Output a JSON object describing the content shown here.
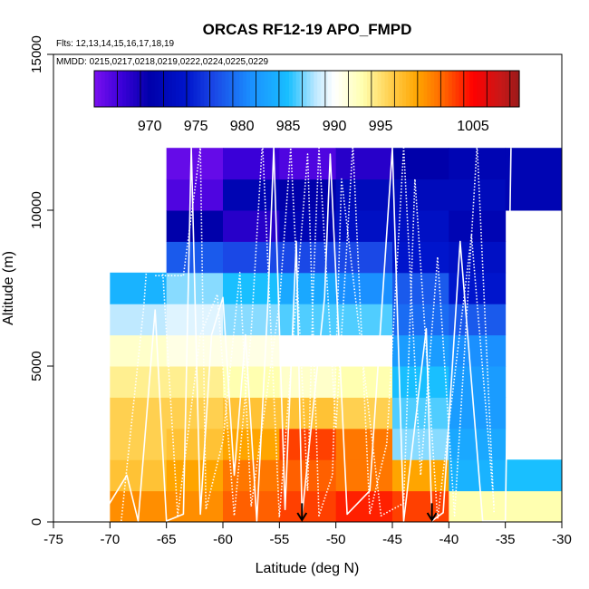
{
  "chart_data": {
    "type": "heatmap",
    "title": "ORCAS RF12-19 APO_FMPD",
    "subtitle_flights": "Flts: 12,13,14,15,16,17,18,19",
    "subtitle_dates": "MMDD: 0215,0217,0218,0219,0222,0224,0225,0229",
    "xlabel": "Latitude (deg N)",
    "ylabel": "Altitude (m)",
    "xlim": [
      -75,
      -30
    ],
    "ylim": [
      0,
      15000
    ],
    "x_ticks": [
      -75,
      -70,
      -65,
      -60,
      -55,
      -50,
      -45,
      -40,
      -35,
      -30
    ],
    "y_ticks": [
      0,
      5000,
      10000,
      15000
    ],
    "grid": false,
    "colorbar": {
      "range": [
        964,
        1010
      ],
      "placement": "top-inside",
      "tick_values": [
        970,
        975,
        980,
        985,
        990,
        995,
        1005
      ],
      "stops": [
        {
          "v": 964,
          "c": "#7a10f0"
        },
        {
          "v": 967,
          "c": "#3a00d8"
        },
        {
          "v": 970,
          "c": "#0000aa"
        },
        {
          "v": 974,
          "c": "#0015cc"
        },
        {
          "v": 977,
          "c": "#1a48e6"
        },
        {
          "v": 981,
          "c": "#1a90ff"
        },
        {
          "v": 985,
          "c": "#19bfff"
        },
        {
          "v": 988,
          "c": "#bfe9ff"
        },
        {
          "v": 990,
          "c": "#ffffff"
        },
        {
          "v": 993,
          "c": "#ffffb0"
        },
        {
          "v": 996,
          "c": "#ffd050"
        },
        {
          "v": 999,
          "c": "#ffa500"
        },
        {
          "v": 1002,
          "c": "#ff6000"
        },
        {
          "v": 1005,
          "c": "#ff0000"
        },
        {
          "v": 1008,
          "c": "#c81818"
        },
        {
          "v": 1010,
          "c": "#9a1a1a"
        }
      ]
    },
    "bin_width_deg": 5,
    "bin_height_m": 1000,
    "columns": [
      {
        "x0": -70,
        "values": [
          1000,
          997,
          996,
          996,
          994,
          992,
          988,
          984
        ]
      },
      {
        "x0": -65,
        "values": [
          1000,
          999,
          997,
          996,
          994,
          991,
          989,
          987,
          978,
          970,
          966,
          965
        ]
      },
      {
        "x0": -60,
        "values": [
          1002,
          1001,
          999,
          997,
          993,
          991,
          987,
          985,
          977,
          968,
          971,
          967
        ]
      },
      {
        "x0": -55,
        "values": [
          1003,
          1002,
          1003,
          997,
          992,
          990,
          986,
          983,
          977,
          971,
          970,
          966
        ]
      },
      {
        "x0": -50,
        "values": [
          1004,
          1001,
          1001,
          996,
          993,
          990,
          986,
          981,
          977,
          973,
          972,
          968
        ]
      },
      {
        "x0": -45,
        "values": [
          1003,
          999,
          987,
          986,
          985,
          982,
          979,
          978,
          974,
          973,
          972,
          970
        ]
      },
      {
        "x0": -40,
        "values": [
          993,
          984,
          983,
          982,
          982,
          981,
          978,
          974,
          973,
          971,
          972,
          971
        ]
      },
      {
        "x0": -35,
        "values": [
          993,
          985,
          null,
          null,
          null,
          null,
          null,
          null,
          null,
          null,
          971,
          971
        ]
      }
    ],
    "flight_tracks": [
      [
        [
          -71,
          30
        ],
        [
          -68.5,
          1500
        ],
        [
          -67.5,
          30
        ],
        [
          -66,
          6800
        ],
        [
          -65,
          30
        ],
        [
          -63.5,
          250
        ],
        [
          -62.8,
          12000
        ],
        [
          -62,
          250
        ],
        [
          -61,
          6000
        ],
        [
          -60,
          7200
        ],
        [
          -59,
          1500
        ],
        [
          -58,
          6000
        ],
        [
          -57,
          30
        ],
        [
          -56,
          7200
        ],
        [
          -55.5,
          12000
        ],
        [
          -54.5,
          400
        ],
        [
          -53.5,
          9000
        ],
        [
          -53,
          200
        ],
        [
          -51,
          7200
        ],
        [
          -50.5,
          11800
        ],
        [
          -49,
          250
        ],
        [
          -47,
          1000
        ],
        [
          -45,
          12000
        ],
        [
          -44,
          30
        ],
        [
          -42,
          6200
        ],
        [
          -41.5,
          30
        ],
        [
          -40.5,
          300
        ],
        [
          -39,
          9000
        ],
        [
          -37,
          30
        ],
        [
          -35,
          30
        ],
        [
          -34.5,
          12000
        ]
      ],
      [
        [
          -69,
          30
        ],
        [
          -67,
          6900
        ],
        [
          -66,
          12000
        ],
        [
          -64,
          200
        ],
        [
          -62,
          6000
        ],
        [
          -60.5,
          7300
        ],
        [
          -59,
          200
        ],
        [
          -57.5,
          6100
        ],
        [
          -56.5,
          12200
        ],
        [
          -55,
          150
        ],
        [
          -53.5,
          7200
        ],
        [
          -52.5,
          11800
        ],
        [
          -51.5,
          200
        ],
        [
          -50.3,
          1500
        ],
        [
          -49.5,
          11000
        ],
        [
          -46,
          200
        ],
        [
          -44,
          600
        ],
        [
          -43,
          11000
        ],
        [
          -41,
          100
        ],
        [
          -38,
          9200
        ],
        [
          -36,
          500
        ]
      ],
      [
        [
          -66,
          7900
        ],
        [
          -63.5,
          7900
        ],
        [
          -62,
          12000
        ],
        [
          -61.5,
          400
        ],
        [
          -60,
          2600
        ],
        [
          -58.5,
          8000
        ],
        [
          -57.5,
          500
        ],
        [
          -55,
          7000
        ],
        [
          -54,
          12000
        ],
        [
          -52.5,
          1000
        ],
        [
          -52,
          7500
        ],
        [
          -51.5,
          12000
        ],
        [
          -50,
          3000
        ],
        [
          -48.5,
          12100
        ],
        [
          -47,
          250
        ],
        [
          -45.5,
          2500
        ],
        [
          -44,
          12000
        ],
        [
          -42.5,
          1500
        ],
        [
          -41,
          8500
        ],
        [
          -39.5,
          200
        ],
        [
          -37.5,
          12100
        ],
        [
          -36,
          300
        ]
      ]
    ],
    "markers": [
      {
        "type": "arrow",
        "lat": -53,
        "alt_top": 600
      },
      {
        "type": "arrow",
        "lat": -41.5,
        "alt_top": 600
      }
    ]
  }
}
